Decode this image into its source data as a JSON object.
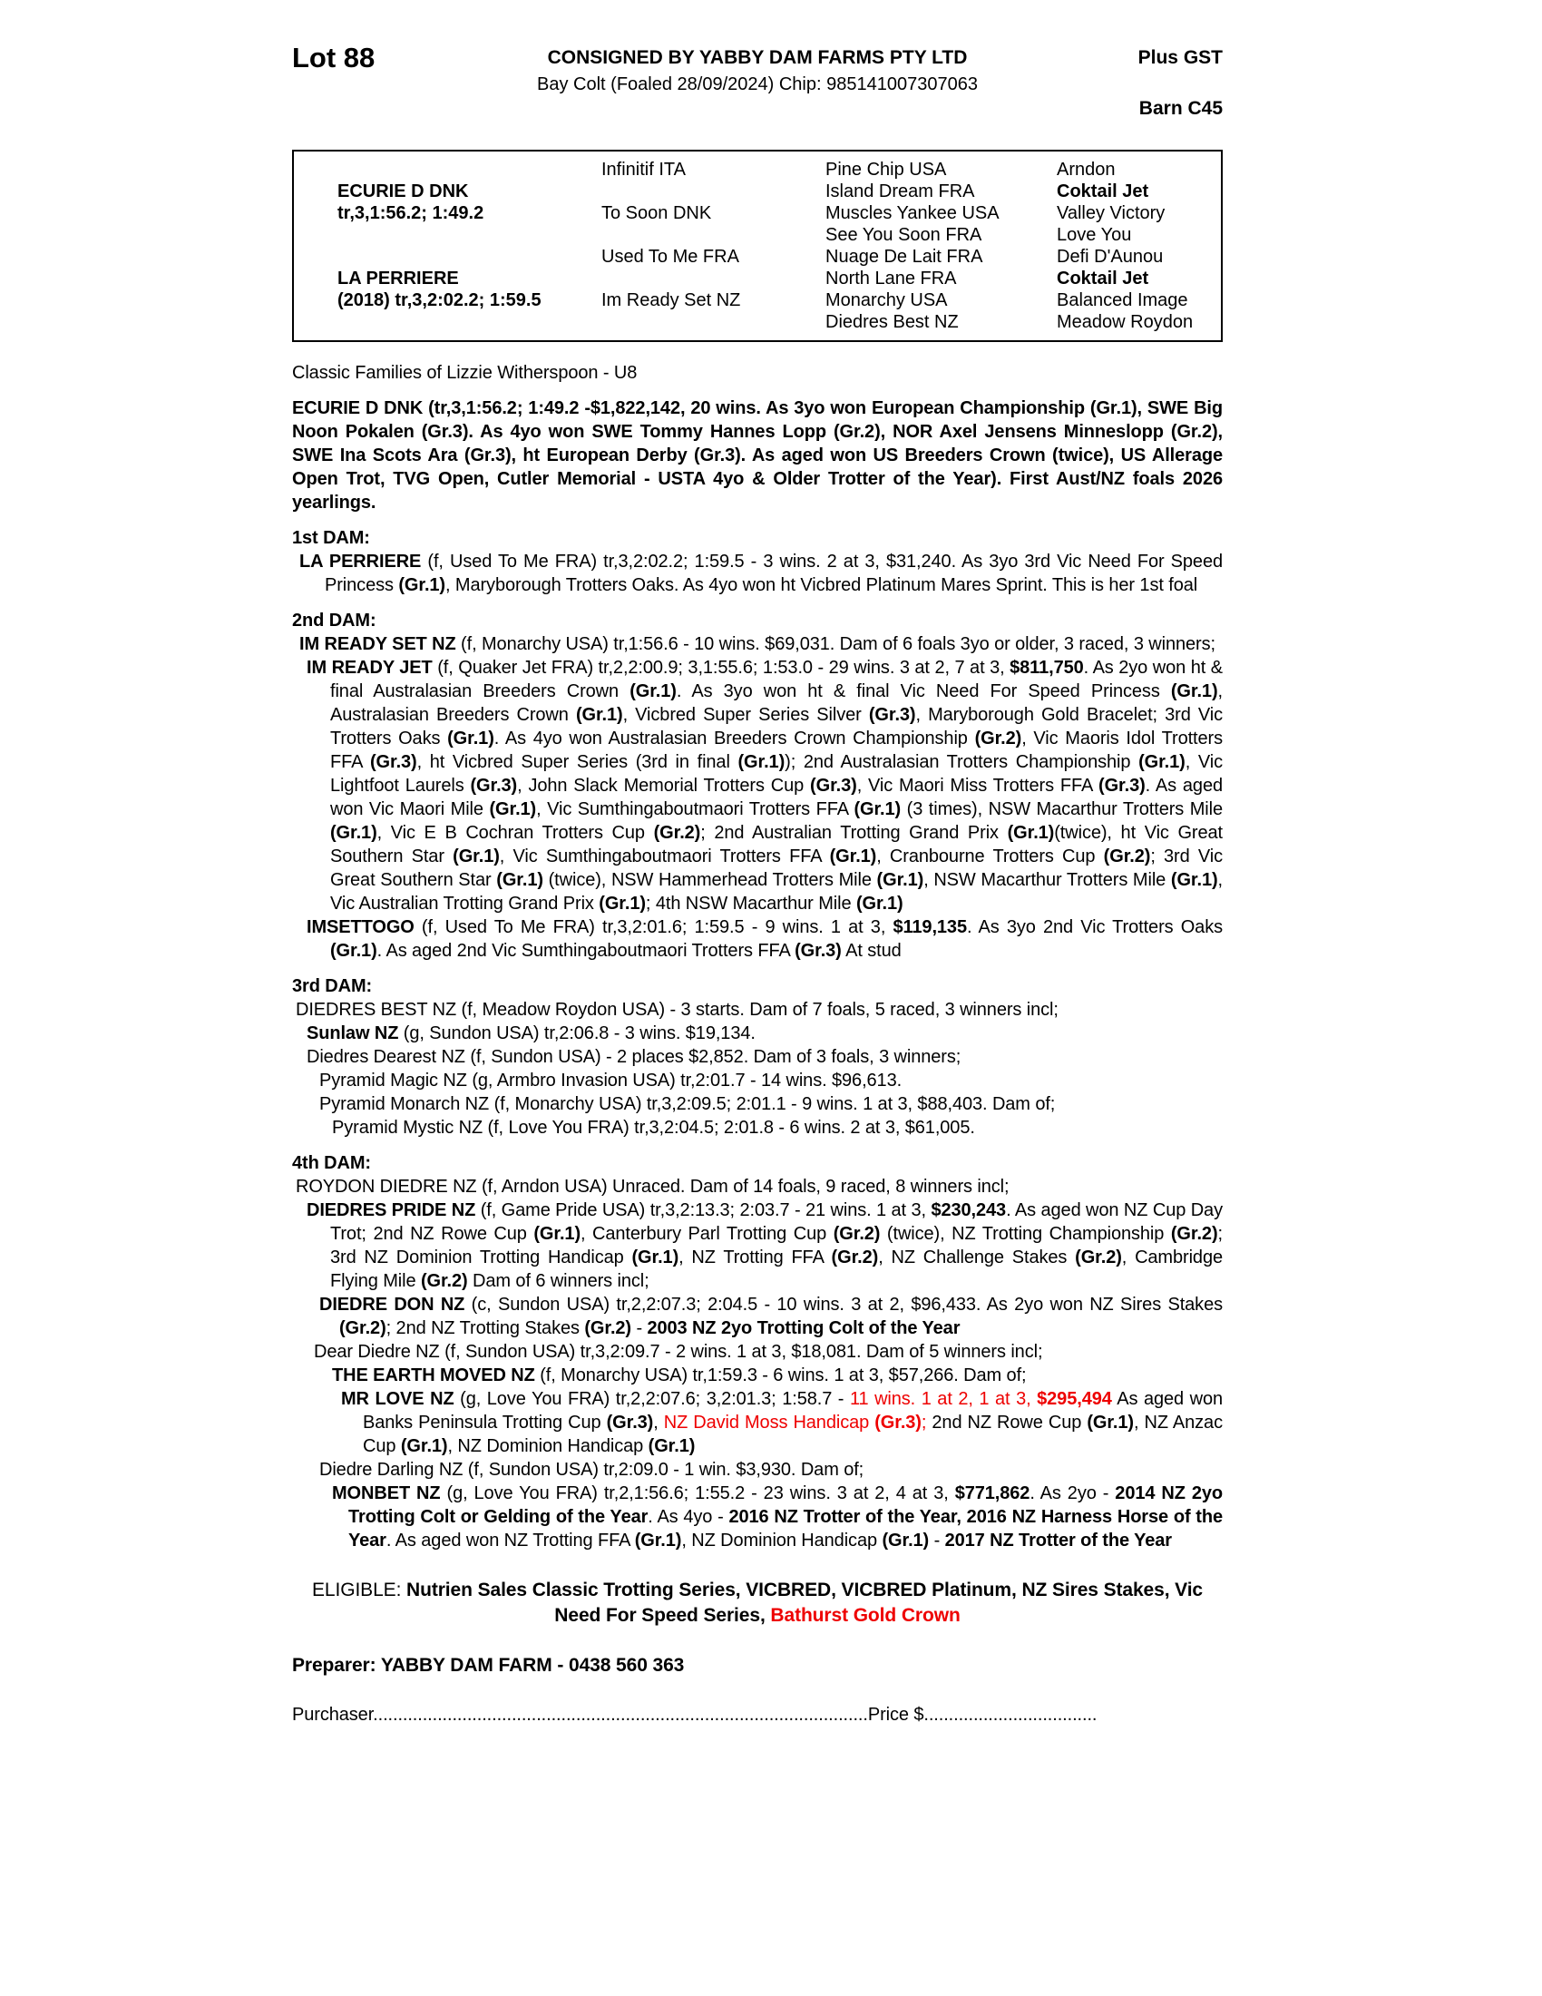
{
  "colors": {
    "red": "#ee0000",
    "text": "#000000",
    "page_bg": "#ffffff"
  },
  "header": {
    "lot": "Lot 88",
    "consigned": "CONSIGNED BY YABBY DAM FARMS PTY LTD",
    "plus_gst": "Plus GST",
    "foal_line": "Bay Colt (Foaled 28/09/2024) Chip: 985141007307063",
    "barn": "Barn C45"
  },
  "pedigree": {
    "rows": [
      {
        "cells": [
          {
            "t": ""
          },
          {
            "t": "Infinitif ITA"
          },
          {
            "t": "Pine Chip USA"
          },
          {
            "t": "Arndon"
          }
        ]
      },
      {
        "cells": [
          {
            "t": "ECURIE D DNK",
            "b": 1
          },
          {
            "t": ""
          },
          {
            "t": "Island Dream FRA"
          },
          {
            "t": "Coktail Jet",
            "b": 1
          }
        ]
      },
      {
        "cells": [
          {
            "t": "tr,3,1:56.2; 1:49.2",
            "b": 1
          },
          {
            "t": "To Soon DNK"
          },
          {
            "t": "Muscles Yankee USA"
          },
          {
            "t": "Valley Victory"
          }
        ]
      },
      {
        "cells": [
          {
            "t": ""
          },
          {
            "t": ""
          },
          {
            "t": "See You Soon FRA"
          },
          {
            "t": "Love You"
          }
        ]
      },
      {
        "cells": [
          {
            "t": ""
          },
          {
            "t": "Used To Me FRA"
          },
          {
            "t": "Nuage De Lait FRA"
          },
          {
            "t": "Defi D'Aunou"
          }
        ]
      },
      {
        "cells": [
          {
            "t": "LA PERRIERE",
            "b": 1
          },
          {
            "t": ""
          },
          {
            "t": "North Lane FRA"
          },
          {
            "t": "Coktail Jet",
            "b": 1
          }
        ]
      },
      {
        "cells": [
          {
            "t": "(2018) tr,3,2:02.2; 1:59.5",
            "b": 1
          },
          {
            "t": "Im Ready Set NZ"
          },
          {
            "t": "Monarchy USA"
          },
          {
            "t": "Balanced Image"
          }
        ]
      },
      {
        "cells": [
          {
            "t": ""
          },
          {
            "t": ""
          },
          {
            "t": "Diedres Best NZ"
          },
          {
            "t": "Meadow Roydon"
          }
        ]
      }
    ]
  },
  "body": [
    {
      "name": "classic-families",
      "cls": "",
      "runs": [
        {
          "t": "Classic Families of Lizzie Witherspoon - U8"
        }
      ]
    },
    {
      "name": "sire-summary",
      "cls": "mt",
      "runs": [
        {
          "t": "ECURIE D DNK (tr,3,1:56.2; 1:49.2 -$1,822,142, 20 wins. As 3yo won European Championship (Gr.1), SWE Big Noon Pokalen (Gr.3). As 4yo won SWE Tommy Hannes Lopp (Gr.2), NOR Axel Jensens Minneslopp (Gr.2), SWE Ina Scots Ara (Gr.3), ht European Derby (Gr.3). As aged won US Breeders Crown (twice), US Allerage Open Trot, TVG Open, Cutler Memorial - USTA 4yo & Older Trotter of the Year). First Aust/NZ foals 2026 yearlings.",
          "b": 1
        }
      ]
    },
    {
      "name": "dam1-heading",
      "cls": "mt",
      "runs": [
        {
          "t": "1st DAM:",
          "b": 1
        }
      ]
    },
    {
      "name": "dam1-la-perriere",
      "cls": "ind1",
      "runs": [
        {
          "t": "LA PERRIERE",
          "b": 1
        },
        {
          "t": " (f, Used To Me FRA) tr,3,2:02.2; 1:59.5 - 3 wins. 2 at 3, $31,240. As 3yo 3rd Vic Need For Speed Princess "
        },
        {
          "t": "(Gr.1)",
          "b": 1
        },
        {
          "t": ", Maryborough Trotters Oaks. As 4yo won ht Vicbred Platinum Mares Sprint. This is her 1st foal"
        }
      ]
    },
    {
      "name": "dam2-heading",
      "cls": "mt",
      "runs": [
        {
          "t": "2nd DAM:",
          "b": 1
        }
      ]
    },
    {
      "name": "dam2-im-ready-set",
      "cls": "ind1",
      "runs": [
        {
          "t": "IM READY SET NZ",
          "b": 1
        },
        {
          "t": " (f, Monarchy USA) tr,1:56.6 - 10 wins. $69,031. Dam of 6 foals 3yo or older, 3 raced, 3 winners;"
        }
      ]
    },
    {
      "name": "entry-im-ready-jet",
      "cls": "ind2",
      "runs": [
        {
          "t": "IM READY JET",
          "b": 1
        },
        {
          "t": " (f, Quaker Jet FRA) tr,2,2:00.9; 3,1:55.6; 1:53.0 - 29 wins. 3 at 2, 7 at 3, "
        },
        {
          "t": "$811,750",
          "b": 1
        },
        {
          "t": ". As 2yo won ht & final Australasian Breeders Crown "
        },
        {
          "t": "(Gr.1)",
          "b": 1
        },
        {
          "t": ". As 3yo won ht & final Vic Need For Speed Princess "
        },
        {
          "t": "(Gr.1)",
          "b": 1
        },
        {
          "t": ", Australasian Breeders Crown "
        },
        {
          "t": "(Gr.1)",
          "b": 1
        },
        {
          "t": ", Vicbred Super Series Silver "
        },
        {
          "t": "(Gr.3)",
          "b": 1
        },
        {
          "t": ", Maryborough Gold Bracelet; 3rd Vic Trotters Oaks "
        },
        {
          "t": "(Gr.1)",
          "b": 1
        },
        {
          "t": ". As 4yo won Australasian Breeders Crown Championship "
        },
        {
          "t": "(Gr.2)",
          "b": 1
        },
        {
          "t": ", Vic Maoris Idol Trotters FFA "
        },
        {
          "t": "(Gr.3)",
          "b": 1
        },
        {
          "t": ", ht Vicbred Super Series (3rd in final "
        },
        {
          "t": "(Gr.1)",
          "b": 1
        },
        {
          "t": "); 2nd Australasian Trotters Championship "
        },
        {
          "t": "(Gr.1)",
          "b": 1
        },
        {
          "t": ", Vic Lightfoot Laurels "
        },
        {
          "t": "(Gr.3)",
          "b": 1
        },
        {
          "t": ", John Slack Memorial Trotters Cup "
        },
        {
          "t": "(Gr.3)",
          "b": 1
        },
        {
          "t": ", Vic Maori Miss Trotters FFA "
        },
        {
          "t": "(Gr.3)",
          "b": 1
        },
        {
          "t": ". As aged won Vic Maori Mile "
        },
        {
          "t": "(Gr.1)",
          "b": 1
        },
        {
          "t": ", Vic Sumthingaboutmaori Trotters FFA "
        },
        {
          "t": "(Gr.1)",
          "b": 1
        },
        {
          "t": " (3 times), NSW Macarthur Trotters Mile "
        },
        {
          "t": "(Gr.1)",
          "b": 1
        },
        {
          "t": ", Vic E B Cochran Trotters Cup "
        },
        {
          "t": "(Gr.2)",
          "b": 1
        },
        {
          "t": "; 2nd Australian Trotting Grand Prix "
        },
        {
          "t": "(Gr.1)",
          "b": 1
        },
        {
          "t": "(twice), ht Vic Great Southern Star "
        },
        {
          "t": "(Gr.1)",
          "b": 1
        },
        {
          "t": ", Vic Sumthingaboutmaori Trotters FFA "
        },
        {
          "t": "(Gr.1)",
          "b": 1
        },
        {
          "t": ", Cranbourne Trotters Cup "
        },
        {
          "t": "(Gr.2)",
          "b": 1
        },
        {
          "t": "; 3rd Vic Great Southern Star "
        },
        {
          "t": "(Gr.1)",
          "b": 1
        },
        {
          "t": " (twice), NSW Hammerhead Trotters Mile "
        },
        {
          "t": "(Gr.1)",
          "b": 1
        },
        {
          "t": ", NSW Macarthur Trotters Mile "
        },
        {
          "t": "(Gr.1)",
          "b": 1
        },
        {
          "t": ", Vic Australian Trotting Grand Prix "
        },
        {
          "t": "(Gr.1)",
          "b": 1
        },
        {
          "t": "; 4th NSW Macarthur Mile "
        },
        {
          "t": "(Gr.1)",
          "b": 1
        }
      ]
    },
    {
      "name": "entry-imsettogo",
      "cls": "ind2",
      "runs": [
        {
          "t": "IMSETTOGO",
          "b": 1
        },
        {
          "t": " (f, Used To Me FRA) tr,3,2:01.6; 1:59.5 - 9 wins. 1 at 3, "
        },
        {
          "t": "$119,135",
          "b": 1
        },
        {
          "t": ". As 3yo 2nd Vic Trotters Oaks "
        },
        {
          "t": "(Gr.1)",
          "b": 1
        },
        {
          "t": ". As aged 2nd Vic Sumthingaboutmaori Trotters FFA "
        },
        {
          "t": "(Gr.3)",
          "b": 1
        },
        {
          "t": " At stud"
        }
      ]
    },
    {
      "name": "dam3-heading",
      "cls": "mt",
      "runs": [
        {
          "t": "3rd DAM:",
          "b": 1
        }
      ]
    },
    {
      "name": "dam3-diedres-best",
      "cls": "ind0h",
      "runs": [
        {
          "t": "DIEDRES BEST NZ (f, Meadow Roydon USA) - 3 starts. Dam of 7 foals, 5 raced, 3 winners incl;"
        }
      ]
    },
    {
      "name": "entry-sunlaw",
      "cls": "ind2",
      "runs": [
        {
          "t": "Sunlaw NZ",
          "b": 1
        },
        {
          "t": " (g, Sundon USA) tr,2:06.8 - 3 wins. $19,134."
        }
      ]
    },
    {
      "name": "entry-diedres-dearest",
      "cls": "ind2",
      "runs": [
        {
          "t": "Diedres Dearest NZ (f, Sundon USA) - 2 places $2,852. Dam of 3 foals, 3 winners;"
        }
      ]
    },
    {
      "name": "entry-pyramid-magic",
      "cls": "ind3",
      "runs": [
        {
          "t": "Pyramid Magic NZ (g, Armbro Invasion USA) tr,2:01.7 - 14 wins. $96,613."
        }
      ]
    },
    {
      "name": "entry-pyramid-monarch",
      "cls": "ind3",
      "runs": [
        {
          "t": "Pyramid Monarch NZ (f, Monarchy USA) tr,3,2:09.5; 2:01.1 - 9 wins. 1 at 3, $88,403. Dam of;"
        }
      ]
    },
    {
      "name": "entry-pyramid-mystic",
      "cls": "ind4",
      "runs": [
        {
          "t": "Pyramid Mystic NZ (f, Love You FRA) tr,3,2:04.5; 2:01.8 - 6 wins. 2 at 3, $61,005."
        }
      ]
    },
    {
      "name": "dam4-heading",
      "cls": "mt",
      "runs": [
        {
          "t": "4th DAM:",
          "b": 1
        }
      ]
    },
    {
      "name": "dam4-roydon-diedre",
      "cls": "ind0h",
      "runs": [
        {
          "t": "ROYDON DIEDRE NZ (f, Arndon USA) Unraced. Dam of 14 foals, 9 raced, 8 winners incl;"
        }
      ]
    },
    {
      "name": "entry-diedres-pride",
      "cls": "ind2",
      "runs": [
        {
          "t": "DIEDRES PRIDE NZ",
          "b": 1
        },
        {
          "t": " (f, Game Pride USA) tr,3,2:13.3; 2:03.7 - 21 wins. 1 at 3, "
        },
        {
          "t": "$230,243",
          "b": 1
        },
        {
          "t": ". As aged won NZ Cup Day Trot; 2nd NZ Rowe Cup "
        },
        {
          "t": "(Gr.1)",
          "b": 1
        },
        {
          "t": ", Canterbury Parl Trotting Cup "
        },
        {
          "t": "(Gr.2)",
          "b": 1
        },
        {
          "t": " (twice), NZ Trotting Championship "
        },
        {
          "t": "(Gr.2)",
          "b": 1
        },
        {
          "t": "; 3rd NZ Dominion Trotting Handicap "
        },
        {
          "t": "(Gr.1)",
          "b": 1
        },
        {
          "t": ", NZ Trotting FFA "
        },
        {
          "t": "(Gr.2)",
          "b": 1
        },
        {
          "t": ", NZ Challenge Stakes "
        },
        {
          "t": "(Gr.2)",
          "b": 1
        },
        {
          "t": ", Cambridge Flying Mile "
        },
        {
          "t": "(Gr.2)",
          "b": 1
        },
        {
          "t": " Dam of 6 winners incl;"
        }
      ]
    },
    {
      "name": "entry-diedre-don",
      "cls": "ind3",
      "runs": [
        {
          "t": "DIEDRE DON NZ",
          "b": 1
        },
        {
          "t": " (c, Sundon USA) tr,2,2:07.3; 2:04.5 - 10 wins. 3 at 2, $96,433. As 2yo won NZ Sires Stakes "
        },
        {
          "t": "(Gr.2)",
          "b": 1
        },
        {
          "t": "; 2nd NZ Trotting Stakes "
        },
        {
          "t": "(Gr.2)",
          "b": 1
        },
        {
          "t": " - "
        },
        {
          "t": "2003 NZ 2yo Trotting Colt of the Year",
          "b": 1
        }
      ]
    },
    {
      "name": "entry-dear-diedre",
      "cls": "ind2b",
      "runs": [
        {
          "t": "Dear Diedre NZ (f, Sundon USA) tr,3,2:09.7 - 2 wins. 1 at 3, $18,081. Dam of 5 winners incl;"
        }
      ]
    },
    {
      "name": "entry-the-earth-moved",
      "cls": "ind4",
      "runs": [
        {
          "t": "THE EARTH MOVED NZ",
          "b": 1
        },
        {
          "t": " (f, Monarchy USA) tr,1:59.3 - 6 wins. 1 at 3, $57,266. Dam of;"
        }
      ]
    },
    {
      "name": "entry-mr-love",
      "cls": "ind5",
      "runs": [
        {
          "t": "MR LOVE NZ",
          "b": 1
        },
        {
          "t": " (g, Love You FRA) tr,2,2:07.6; 3,2:01.3; 1:58.7 - "
        },
        {
          "t": "11 wins. 1 at 2, 1 at 3, ",
          "r": 1
        },
        {
          "t": "$295,494",
          "b": 1,
          "r": 1
        },
        {
          "t": " As aged won Banks Peninsula Trotting Cup "
        },
        {
          "t": "(Gr.3)",
          "b": 1
        },
        {
          "t": ", "
        },
        {
          "t": "NZ David Moss Handicap ",
          "r": 1
        },
        {
          "t": "(Gr.3)",
          "b": 1,
          "r": 1
        },
        {
          "t": ";",
          "r": 1
        },
        {
          "t": " 2nd NZ Rowe Cup "
        },
        {
          "t": "(Gr.1)",
          "b": 1
        },
        {
          "t": ", NZ Anzac Cup "
        },
        {
          "t": "(Gr.1)",
          "b": 1
        },
        {
          "t": ", NZ Dominion Handicap "
        },
        {
          "t": "(Gr.1)",
          "b": 1
        }
      ]
    },
    {
      "name": "entry-diedre-darling",
      "cls": "ind3",
      "runs": [
        {
          "t": "Diedre Darling NZ (f, Sundon USA) tr,2:09.0 - 1 win. $3,930. Dam of;"
        }
      ]
    },
    {
      "name": "entry-monbet",
      "cls": "ind4",
      "runs": [
        {
          "t": "MONBET NZ",
          "b": 1
        },
        {
          "t": " (g, Love You FRA) tr,2,1:56.6; 1:55.2 - 23 wins. 3 at 2, 4 at 3, "
        },
        {
          "t": "$771,862",
          "b": 1
        },
        {
          "t": ". As 2yo - "
        },
        {
          "t": "2014 NZ 2yo Trotting Colt or Gelding of the Year",
          "b": 1
        },
        {
          "t": ". As 4yo - "
        },
        {
          "t": "2016 NZ Trotter of the Year, 2016 NZ Harness Horse of the Year",
          "b": 1
        },
        {
          "t": ". As aged won NZ Trotting FFA "
        },
        {
          "t": "(Gr.1)",
          "b": 1
        },
        {
          "t": ", NZ Dominion Handicap "
        },
        {
          "t": "(Gr.1)",
          "b": 1
        },
        {
          "t": " - "
        },
        {
          "t": "2017 NZ Trotter of the Year",
          "b": 1
        }
      ]
    },
    {
      "name": "eligible-line",
      "cls": "eligible",
      "runs": [
        {
          "t": "ELIGIBLE: "
        },
        {
          "t": "Nutrien Sales Classic Trotting Series, VICBRED, VICBRED Platinum, NZ Sires Stakes, Vic Need For Speed Series, ",
          "b": 1
        },
        {
          "t": "Bathurst Gold Crown",
          "b": 1,
          "r": 1
        }
      ]
    },
    {
      "name": "preparer-line",
      "cls": "preparer",
      "runs": [
        {
          "t": "Preparer: YABBY DAM FARM - 0438 560 363",
          "b": 1
        }
      ]
    },
    {
      "name": "purchaser-line",
      "cls": "purchaser",
      "runs": [
        {
          "t": "Purchaser"
        },
        {
          "t": "...................................................................................................."
        },
        {
          "t": "Price $"
        },
        {
          "t": "..................................."
        }
      ]
    }
  ]
}
